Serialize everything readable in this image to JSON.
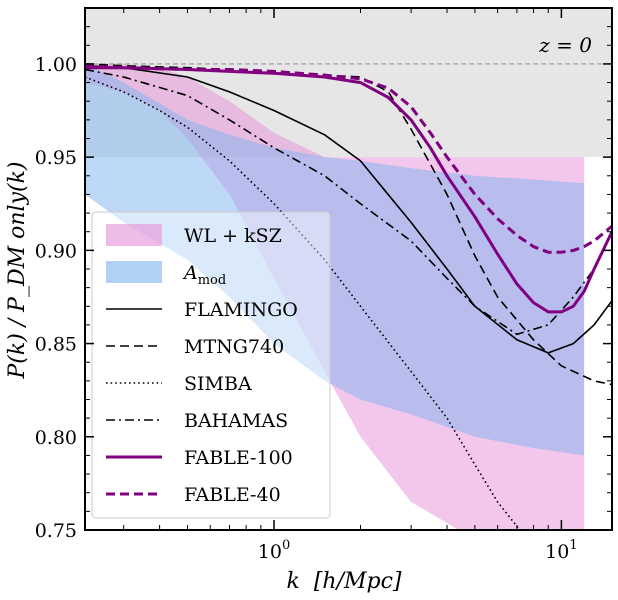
{
  "chart_data": {
    "type": "line",
    "title": "",
    "annotation": "z = 0",
    "xlabel": "k  [h/Mpc]",
    "ylabel": "P(k) / P_DM only(k)",
    "xscale": "log",
    "xlim": [
      0.22,
      15
    ],
    "ylim": [
      0.75,
      1.03
    ],
    "x_ticks": [
      {
        "value": 1,
        "label": "10^0"
      },
      {
        "value": 10,
        "label": "10^1"
      }
    ],
    "y_ticks": [
      {
        "value": 0.75,
        "label": "0.75"
      },
      {
        "value": 0.8,
        "label": "0.80"
      },
      {
        "value": 0.85,
        "label": "0.85"
      },
      {
        "value": 0.9,
        "label": "0.90"
      },
      {
        "value": 0.95,
        "label": "0.95"
      },
      {
        "value": 1.0,
        "label": "1.00"
      }
    ],
    "reference_line": {
      "y": 1.0,
      "style": "dashed",
      "color": "#999999"
    },
    "shaded_region": {
      "y_from": 0.95,
      "y_to": 1.03,
      "color": "#e6e6e6"
    },
    "legend_position": "left",
    "bands": [
      {
        "name": "WL + kSZ",
        "color": "#e58fd7",
        "x": [
          0.22,
          0.3,
          0.4,
          0.5,
          0.7,
          1.0,
          1.5,
          2.0,
          3.0,
          5.0,
          8.0,
          12.0
        ],
        "upper": [
          1.0,
          1.0,
          0.998,
          0.993,
          0.98,
          0.963,
          0.95,
          0.95,
          0.95,
          0.95,
          0.95,
          0.95
        ],
        "lower": [
          0.99,
          0.985,
          0.975,
          0.96,
          0.93,
          0.885,
          0.835,
          0.8,
          0.765,
          0.745,
          0.74,
          0.74
        ]
      },
      {
        "name": "A_mod",
        "color": "#7db3f0",
        "x": [
          0.22,
          0.3,
          0.5,
          0.7,
          1.0,
          1.5,
          2.0,
          3.0,
          5.0,
          8.0,
          12.0
        ],
        "upper": [
          1.0,
          0.99,
          0.97,
          0.962,
          0.955,
          0.95,
          0.948,
          0.944,
          0.94,
          0.938,
          0.936
        ],
        "lower": [
          0.93,
          0.915,
          0.895,
          0.875,
          0.85,
          0.83,
          0.82,
          0.812,
          0.8,
          0.794,
          0.79
        ]
      }
    ],
    "series": [
      {
        "name": "FLAMINGO",
        "color": "#000000",
        "style": "solid",
        "x": [
          0.22,
          0.3,
          0.5,
          0.7,
          1.0,
          1.5,
          2.0,
          3.0,
          4.0,
          5.0,
          7.0,
          9.0,
          11.0,
          13.0,
          15.0
        ],
        "y": [
          0.999,
          0.998,
          0.993,
          0.985,
          0.975,
          0.962,
          0.948,
          0.915,
          0.89,
          0.87,
          0.852,
          0.845,
          0.85,
          0.86,
          0.873
        ]
      },
      {
        "name": "MTNG740",
        "color": "#000000",
        "style": "dashed",
        "x": [
          0.22,
          0.3,
          0.5,
          0.7,
          1.0,
          1.5,
          2.0,
          2.5,
          3.0,
          4.0,
          5.0,
          6.0,
          8.0,
          10.0,
          13.0,
          15.0
        ],
        "y": [
          1.0,
          0.999,
          0.998,
          0.997,
          0.996,
          0.994,
          0.993,
          0.985,
          0.965,
          0.93,
          0.897,
          0.875,
          0.852,
          0.838,
          0.83,
          0.828
        ]
      },
      {
        "name": "SIMBA",
        "color": "#000000",
        "style": "dotted",
        "x": [
          0.22,
          0.3,
          0.4,
          0.5,
          0.7,
          1.0,
          1.5,
          2.0,
          3.0,
          4.0,
          5.0,
          6.0,
          7.0,
          7.5
        ],
        "y": [
          0.993,
          0.985,
          0.975,
          0.966,
          0.948,
          0.925,
          0.895,
          0.87,
          0.835,
          0.81,
          0.785,
          0.765,
          0.752,
          0.745
        ]
      },
      {
        "name": "BAHAMAS",
        "color": "#000000",
        "style": "dashdot",
        "x": [
          0.22,
          0.3,
          0.5,
          0.7,
          1.0,
          1.5,
          2.0,
          3.0,
          4.0,
          5.0,
          7.0,
          9.0,
          11.0,
          13.0,
          15.0
        ],
        "y": [
          0.997,
          0.993,
          0.983,
          0.97,
          0.955,
          0.94,
          0.925,
          0.905,
          0.885,
          0.87,
          0.855,
          0.86,
          0.875,
          0.89,
          0.91
        ]
      },
      {
        "name": "FABLE-100",
        "color": "#800080",
        "style": "solid",
        "x": [
          0.22,
          0.3,
          0.5,
          0.7,
          1.0,
          1.5,
          2.0,
          2.5,
          3.0,
          3.5,
          4.0,
          5.0,
          6.0,
          7.0,
          8.0,
          9.0,
          10.0,
          11.0,
          12.0,
          13.0,
          15.0
        ],
        "y": [
          0.998,
          0.998,
          0.997,
          0.996,
          0.995,
          0.993,
          0.99,
          0.982,
          0.97,
          0.955,
          0.94,
          0.918,
          0.898,
          0.882,
          0.872,
          0.867,
          0.867,
          0.87,
          0.878,
          0.89,
          0.91
        ]
      },
      {
        "name": "FABLE-40",
        "color": "#800080",
        "style": "dashed",
        "x": [
          0.22,
          0.3,
          0.5,
          0.7,
          1.0,
          1.5,
          2.0,
          2.5,
          3.0,
          3.5,
          4.0,
          5.0,
          6.0,
          7.0,
          8.0,
          9.0,
          10.0,
          11.0,
          12.0,
          13.0,
          15.0
        ],
        "y": [
          0.999,
          0.998,
          0.997,
          0.997,
          0.996,
          0.994,
          0.992,
          0.987,
          0.977,
          0.963,
          0.95,
          0.93,
          0.917,
          0.908,
          0.902,
          0.899,
          0.899,
          0.9,
          0.902,
          0.905,
          0.913
        ]
      }
    ]
  }
}
